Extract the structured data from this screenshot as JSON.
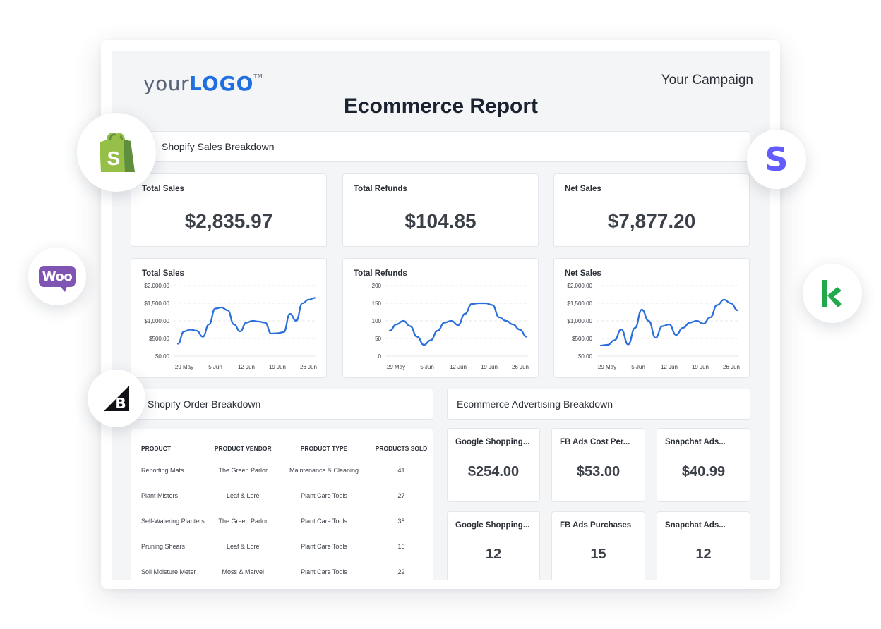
{
  "header": {
    "logo_your": "your",
    "logo_brand": "LOGO",
    "logo_tm": "TM",
    "campaign": "Your Campaign",
    "title": "Ecommerce Report"
  },
  "sales_section": {
    "title": "Shopify Sales Breakdown",
    "kpis": [
      {
        "label": "Total Sales",
        "value": "$2,835.97"
      },
      {
        "label": "Total Refunds",
        "value": "$104.85"
      },
      {
        "label": "Net Sales",
        "value": "$7,877.20"
      }
    ],
    "line_color": "#2a6fdb"
  },
  "chart_data": [
    {
      "type": "line",
      "title": "Total Sales",
      "x_ticks": [
        "29 May",
        "5 Jun",
        "12 Jun",
        "19 Jun",
        "26 Jun"
      ],
      "y_ticks": [
        "$0.00",
        "$500.00",
        "$1,000.00",
        "$1,500.00",
        "$2,000.00"
      ],
      "ylim": [
        0,
        2000
      ],
      "grid": true,
      "series": [
        {
          "values": [
            350,
            700,
            750,
            720,
            550,
            900,
            1350,
            1380,
            1300,
            900,
            700,
            950,
            1000,
            980,
            950,
            640,
            650,
            680,
            1200,
            1000,
            1500,
            1600,
            1650
          ]
        }
      ]
    },
    {
      "type": "line",
      "title": "Total Refunds",
      "x_ticks": [
        "29 May",
        "5 Jun",
        "12 Jun",
        "19 Jun",
        "26 Jun"
      ],
      "y_ticks": [
        "0",
        "50",
        "100",
        "150",
        "200"
      ],
      "ylim": [
        0,
        200
      ],
      "grid": true,
      "series": [
        {
          "values": [
            72,
            90,
            100,
            85,
            55,
            32,
            45,
            72,
            95,
            100,
            88,
            120,
            148,
            150,
            150,
            145,
            110,
            100,
            90,
            75,
            55
          ]
        }
      ]
    },
    {
      "type": "line",
      "title": "Net Sales",
      "x_ticks": [
        "29 May",
        "5 Jun",
        "12 Jun",
        "19 Jun",
        "26 Jun"
      ],
      "y_ticks": [
        "$0.00",
        "$500.00",
        "$1,000.00",
        "$1,500.00",
        "$2,000.00"
      ],
      "ylim": [
        0,
        2000
      ],
      "grid": true,
      "series": [
        {
          "values": [
            300,
            320,
            450,
            760,
            330,
            800,
            1320,
            1000,
            520,
            850,
            900,
            600,
            800,
            950,
            1000,
            920,
            1100,
            1450,
            1600,
            1500,
            1300
          ]
        }
      ]
    }
  ],
  "orders_section": {
    "title": "Shopify Order Breakdown",
    "columns": [
      "PRODUCT",
      "PRODUCT VENDOR",
      "PRODUCT TYPE",
      "PRODUCTS SOLD"
    ],
    "rows": [
      [
        "Repotting Mats",
        "The Green Parlor",
        "Maintenance & Cleaning",
        "41"
      ],
      [
        "Plant Misters",
        "Leaf & Lore",
        "Plant Care Tools",
        "27"
      ],
      [
        "Self-Watering Planters",
        "The Green Parlor",
        "Plant Care Tools",
        "38"
      ],
      [
        "Pruning Shears",
        "Leaf & Lore",
        "Plant Care Tools",
        "16"
      ],
      [
        "Soil Moisture Meter",
        "Moss & Marvel",
        "Plant Care Tools",
        "22"
      ]
    ]
  },
  "ads_section": {
    "title": "Ecommerce Advertising Breakdown",
    "cards": [
      {
        "label": "Google Shopping...",
        "value": "$254.00"
      },
      {
        "label": "FB Ads Cost Per...",
        "value": "$53.00"
      },
      {
        "label": "Snapchat Ads...",
        "value": "$40.99"
      },
      {
        "label": "Google Shopping...",
        "value": "12"
      },
      {
        "label": "FB Ads Purchases",
        "value": "15"
      },
      {
        "label": "Snapchat Ads...",
        "value": "12"
      }
    ]
  },
  "integrations": {
    "icons": [
      "shopify-icon",
      "stripe-icon",
      "woocommerce-icon",
      "klaviyo-icon",
      "bigcommerce-icon"
    ],
    "woo_text": "Woo",
    "stripe_text": "S",
    "bigcommerce_text": "B",
    "colors": {
      "shopify": "#95bf47",
      "stripe": "#635bff",
      "woo": "#7f54b3",
      "klaviyo": "#22a94b",
      "bigcommerce": "#121118"
    }
  }
}
